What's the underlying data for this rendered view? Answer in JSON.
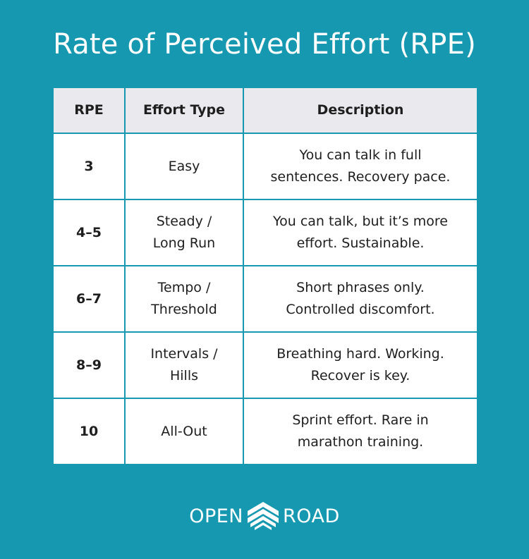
{
  "title": "Rate of Perceived Effort (RPE)",
  "table": {
    "headers": [
      "RPE",
      "Effort Type",
      "Description"
    ],
    "rows": [
      {
        "rpe": "3",
        "type_lines": [
          "Easy"
        ],
        "desc_lines": [
          "You can talk in full",
          "sentences. Recovery pace."
        ]
      },
      {
        "rpe": "4–5",
        "type_lines": [
          "Steady /",
          "Long Run"
        ],
        "desc_lines": [
          "You can talk, but it’s more",
          "effort. Sustainable."
        ]
      },
      {
        "rpe": "6–7",
        "type_lines": [
          "Tempo /",
          "Threshold"
        ],
        "desc_lines": [
          "Short phrases only.",
          "Controlled discomfort."
        ]
      },
      {
        "rpe": "8–9",
        "type_lines": [
          "Intervals /",
          "Hills"
        ],
        "desc_lines": [
          "Breathing hard. Working.",
          "Recover is key."
        ]
      },
      {
        "rpe": "10",
        "type_lines": [
          "All-Out"
        ],
        "desc_lines": [
          "Sprint effort. Rare in",
          "marathon training."
        ]
      }
    ]
  },
  "logo": {
    "left_word": "OPEN",
    "right_word": "ROAD",
    "icon": "chevron-road-icon"
  },
  "colors": {
    "background": "#1598b0",
    "header_fill": "#e9e9ee",
    "cell_fill": "#ffffff",
    "text": "#1e1e1e",
    "title_text": "#ffffff"
  }
}
